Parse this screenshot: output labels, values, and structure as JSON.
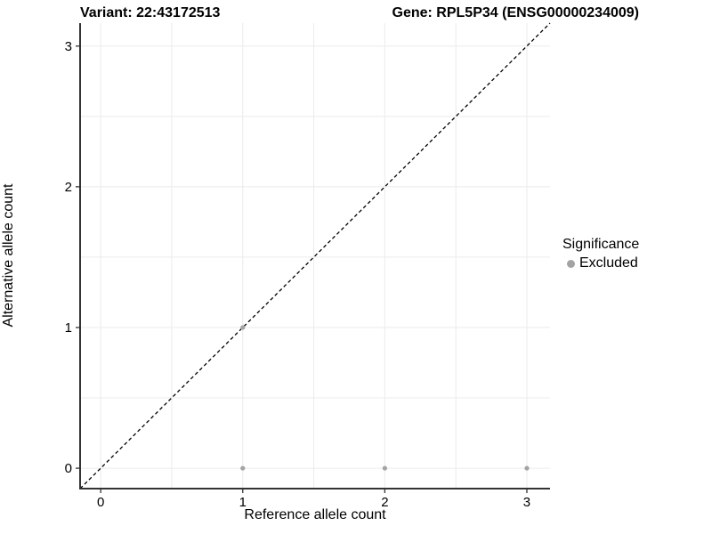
{
  "header": {
    "left_title": "Variant: 22:43172513",
    "right_title": "Gene: RPL5P34 (ENSG00000234009)"
  },
  "chart_data": {
    "type": "scatter",
    "title_left": "Variant: 22:43172513",
    "title_right": "Gene: RPL5P34 (ENSG00000234009)",
    "xlabel": "Reference allele count",
    "ylabel": "Alternative allele count",
    "xlim": [
      -0.145,
      3.163
    ],
    "ylim": [
      -0.145,
      3.163
    ],
    "xticks": [
      0,
      1,
      2,
      3
    ],
    "yticks": [
      0,
      1,
      2,
      3
    ],
    "grid": {
      "major": [
        0,
        1,
        2,
        3
      ],
      "minor": [
        0.5,
        1.5,
        2.5
      ],
      "color": "#EBEBEB"
    },
    "series": [
      {
        "name": "Excluded",
        "color": "#A3A3A3",
        "points": [
          [
            1,
            0
          ],
          [
            2,
            0
          ],
          [
            3,
            0
          ],
          [
            1,
            1
          ]
        ]
      }
    ],
    "reference_line": {
      "type": "identity-diagonal",
      "style": "dashed",
      "color": "#000000"
    },
    "legend": {
      "position": "right",
      "title": "Significance",
      "items": [
        {
          "label": "Excluded",
          "color": "#A3A3A3",
          "marker": "dot"
        }
      ]
    },
    "colors": {
      "axis_line": "#333333",
      "grid_line": "#EBEBEB",
      "background": "#FFFFFF",
      "text": "#000000"
    }
  }
}
